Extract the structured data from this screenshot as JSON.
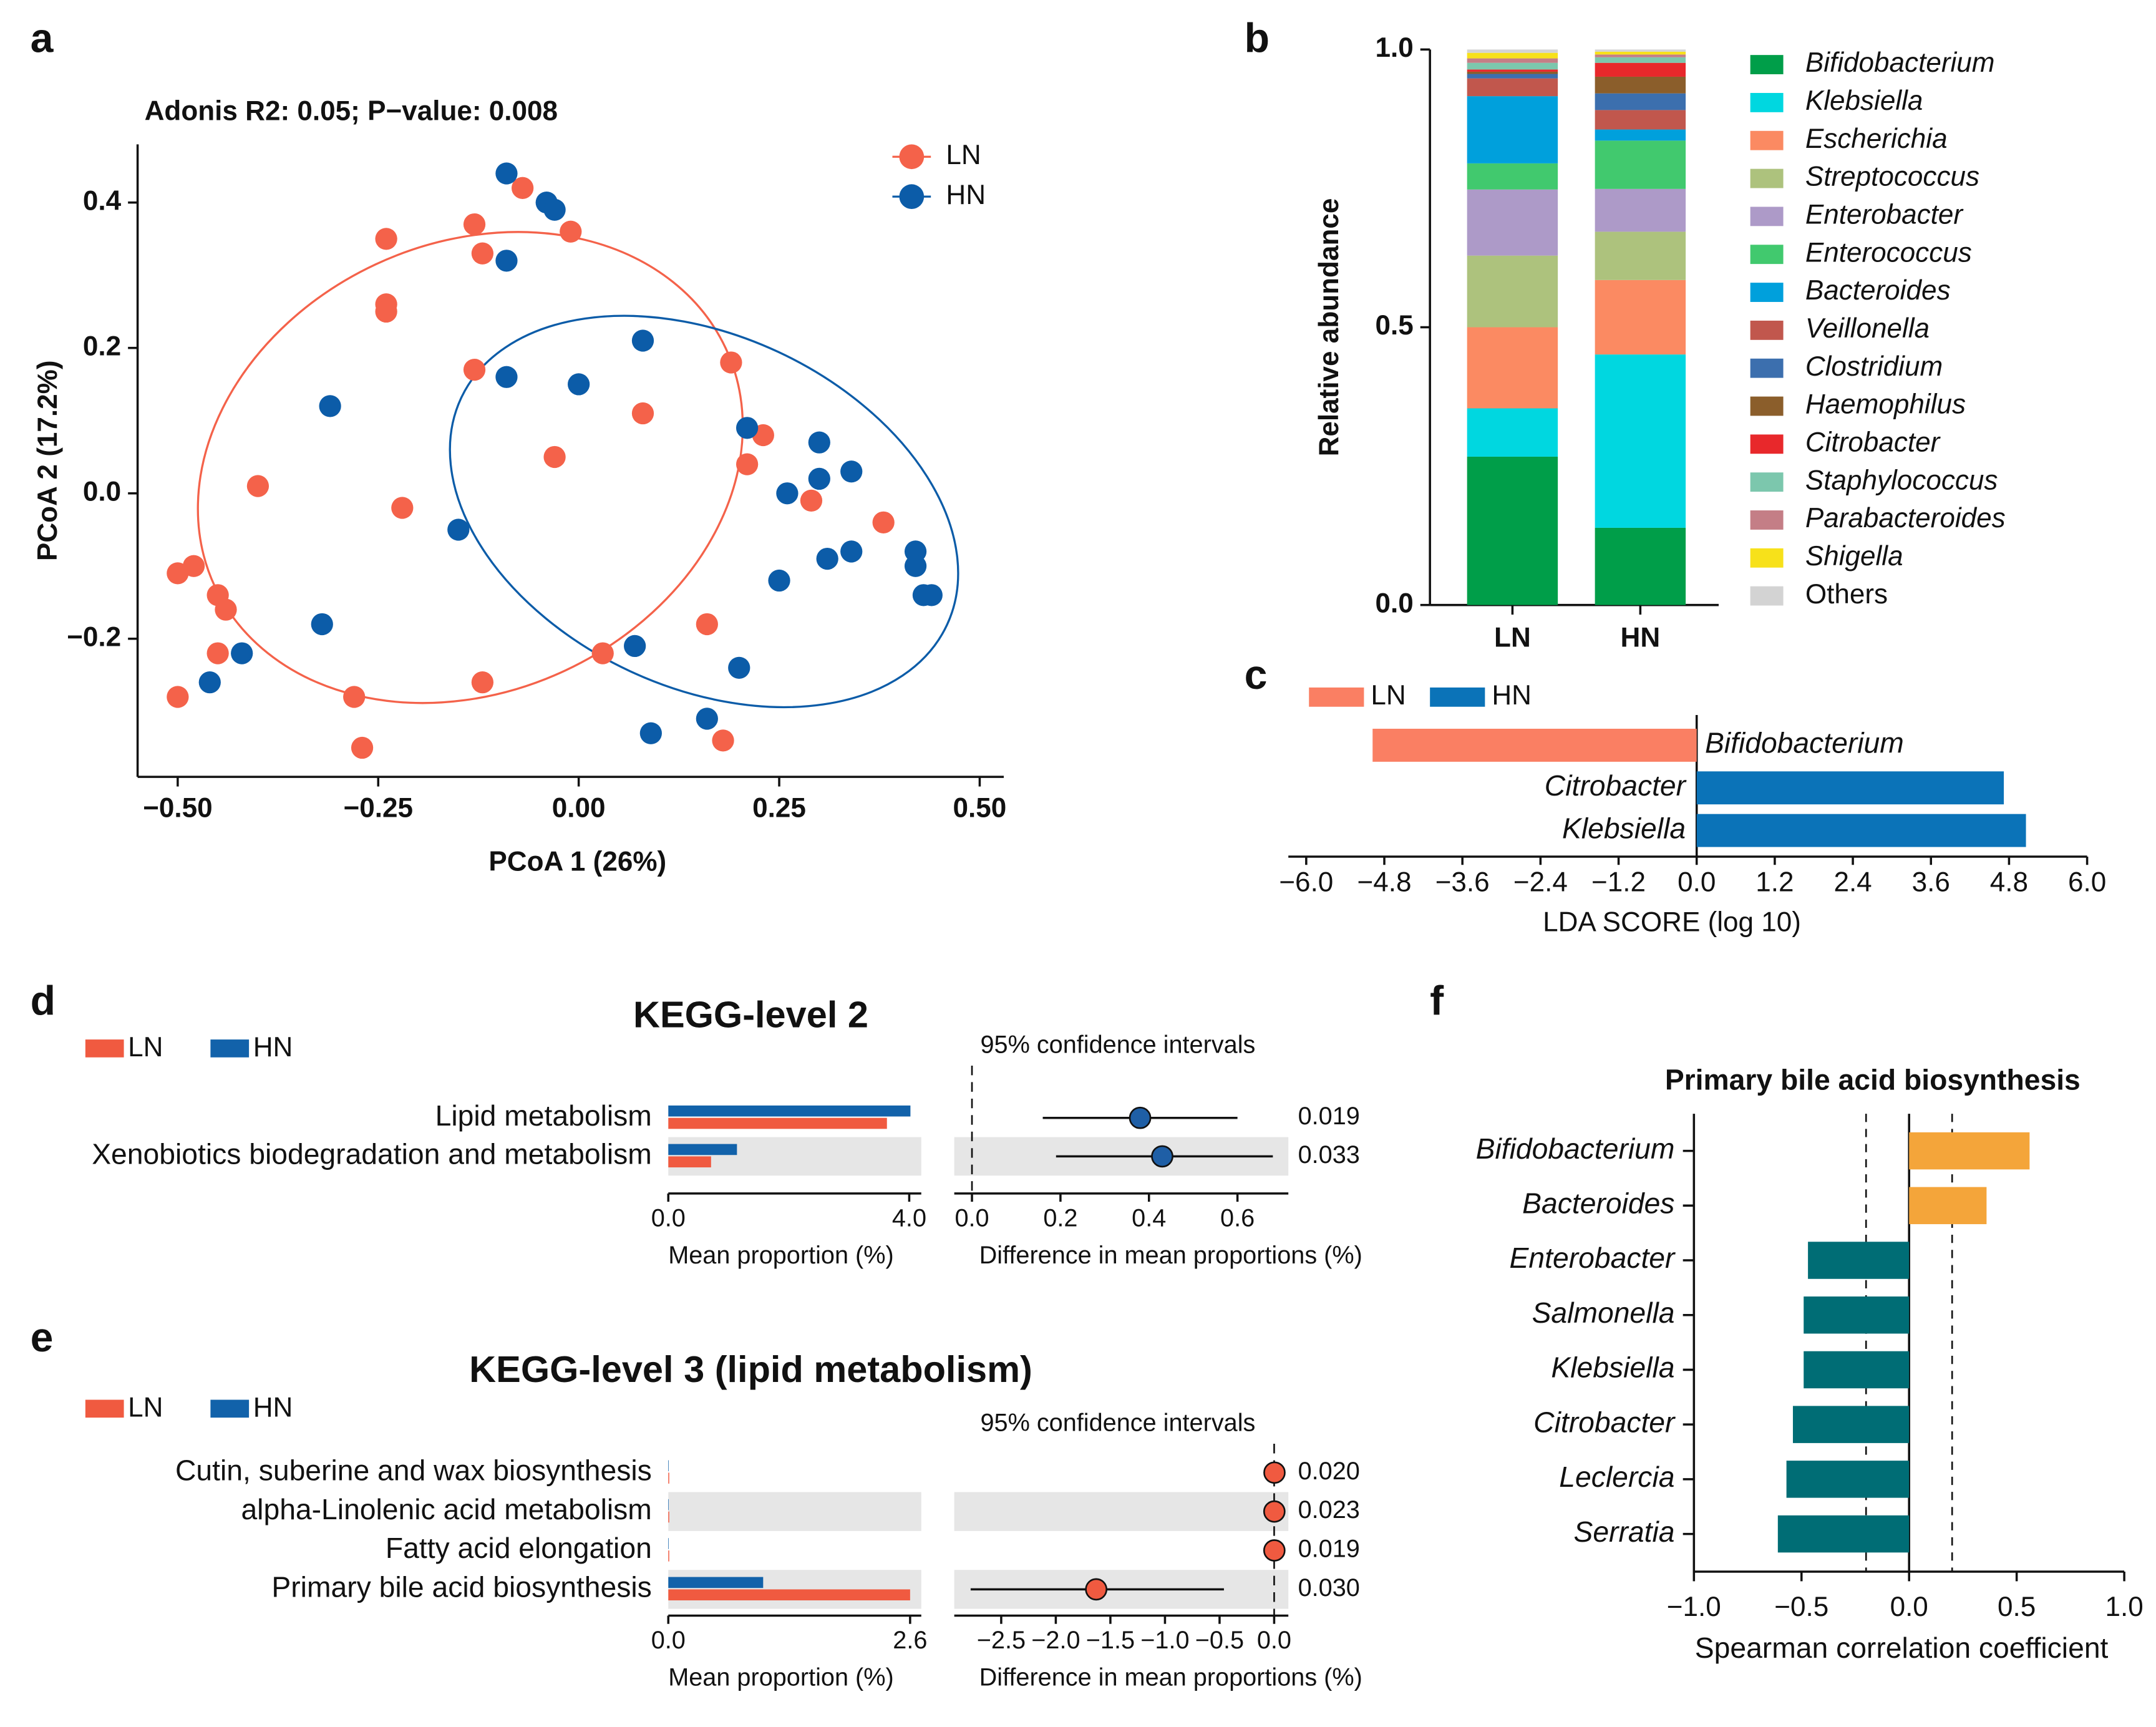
{
  "chart_data": [
    {
      "type": "scatter",
      "panel_label": "a",
      "subtitle": "Adonis R2: 0.05; P−value: 0.008",
      "xlabel": "PCoA 1 (26%)",
      "ylabel": "PCoA 2 (17.2%)",
      "xlim": [
        -0.55,
        0.53
      ],
      "ylim": [
        -0.39,
        0.48
      ],
      "xticks": [
        {
          "value": -0.5,
          "label": "−0.50"
        },
        {
          "value": -0.25,
          "label": "−0.25"
        },
        {
          "value": 0,
          "label": "0.00"
        },
        {
          "value": 0.25,
          "label": "0.25"
        },
        {
          "value": 0.5,
          "label": "0.50"
        }
      ],
      "yticks": [
        {
          "value": -0.2,
          "label": "−0.2"
        },
        {
          "value": 0,
          "label": "0.0"
        },
        0.2,
        0.4
      ],
      "series": [
        {
          "name": "LN",
          "color": "#f4624a",
          "x": [
            -0.07,
            -0.13,
            -0.01,
            -0.24,
            -0.12,
            -0.24,
            -0.24,
            -0.13,
            0.19,
            0.08,
            0.23,
            -0.03,
            0.21,
            -0.4,
            0.29,
            -0.22,
            0.38,
            -0.5,
            -0.48,
            -0.45,
            -0.44,
            -0.45,
            0.03,
            0.16,
            -0.12,
            -0.5,
            -0.28,
            -0.27,
            0.18
          ],
          "y": [
            0.42,
            0.37,
            0.36,
            0.35,
            0.33,
            0.26,
            0.25,
            0.17,
            0.18,
            0.11,
            0.08,
            0.05,
            0.04,
            0.01,
            -0.01,
            -0.02,
            -0.04,
            -0.11,
            -0.1,
            -0.14,
            -0.16,
            -0.22,
            -0.22,
            -0.18,
            -0.26,
            -0.28,
            -0.28,
            -0.35,
            -0.34
          ]
        },
        {
          "name": "HN",
          "color": "#0c5ca8",
          "x": [
            -0.09,
            -0.04,
            -0.03,
            -0.09,
            0.08,
            -0.09,
            0.0,
            -0.31,
            0.21,
            0.3,
            0.34,
            0.26,
            0.3,
            -0.15,
            0.42,
            0.34,
            0.31,
            0.42,
            0.25,
            0.43,
            0.44,
            -0.32,
            0.07,
            -0.42,
            -0.46,
            0.2,
            0.09,
            0.16
          ],
          "y": [
            0.44,
            0.4,
            0.39,
            0.32,
            0.21,
            0.16,
            0.15,
            0.12,
            0.09,
            0.07,
            0.03,
            0.0,
            0.02,
            -0.05,
            -0.08,
            -0.08,
            -0.09,
            -0.1,
            -0.12,
            -0.14,
            -0.14,
            -0.18,
            -0.21,
            -0.22,
            -0.26,
            -0.24,
            -0.33,
            -0.31
          ]
        }
      ]
    },
    {
      "type": "stacked",
      "panel_label": "b",
      "ylabel": "Relative abundance",
      "categories": [
        "LN",
        "HN"
      ],
      "ylim": [
        0,
        1
      ],
      "yticks": [
        {
          "value": 0,
          "label": "0.0"
        },
        0.5,
        {
          "value": 1,
          "label": "1.0"
        }
      ],
      "series": [
        {
          "name": "Bifidobacterium",
          "color": "#009e49",
          "values": [
            0.267,
            0.139
          ]
        },
        {
          "name": "Klebsiella",
          "color": "#00d7e0",
          "values": [
            0.087,
            0.312
          ]
        },
        {
          "name": "Escherichia",
          "color": "#fb8a62",
          "values": [
            0.146,
            0.134
          ]
        },
        {
          "name": "Streptococcus",
          "color": "#adc27d",
          "values": [
            0.129,
            0.087
          ]
        },
        {
          "name": "Enterobacter",
          "color": "#ad9ac8",
          "values": [
            0.119,
            0.077
          ]
        },
        {
          "name": "Enterococcus",
          "color": "#41c96e",
          "values": [
            0.047,
            0.087
          ]
        },
        {
          "name": "Bacteroides",
          "color": "#00a0dc",
          "values": [
            0.121,
            0.02
          ]
        },
        {
          "name": "Veillonella",
          "color": "#c1574d",
          "values": [
            0.032,
            0.035
          ]
        },
        {
          "name": "Clostridium",
          "color": "#3c6fae",
          "values": [
            0.008,
            0.03
          ]
        },
        {
          "name": "Haemophilus",
          "color": "#8b5e2b",
          "values": [
            0.004,
            0.03
          ]
        },
        {
          "name": "Citrobacter",
          "color": "#e8282b",
          "values": [
            0.004,
            0.025
          ]
        },
        {
          "name": "Staphylococcus",
          "color": "#7cc7ad",
          "values": [
            0.012,
            0.01
          ]
        },
        {
          "name": "Parabacteroides",
          "color": "#c47e86",
          "values": [
            0.008,
            0.005
          ]
        },
        {
          "name": "Shigella",
          "color": "#f7e11a",
          "values": [
            0.01,
            0.005
          ]
        },
        {
          "name": "Others",
          "color": "#d3d3d3",
          "values": [
            0.006,
            0.004
          ]
        }
      ]
    },
    {
      "type": "lda",
      "panel_label": "c",
      "xlabel": "LDA SCORE (log 10)",
      "categories": [
        "Bifidobacterium",
        "Citrobacter",
        "Klebsiella"
      ],
      "xlim": [
        -6,
        6
      ],
      "xticks": [
        {
          "value": -6,
          "label": "−6.0"
        },
        {
          "value": -4.8,
          "label": "−4.8"
        },
        {
          "value": -3.6,
          "label": "−3.6"
        },
        {
          "value": -2.4,
          "label": "−2.4"
        },
        {
          "value": -1.2,
          "label": "−1.2"
        },
        {
          "value": 0,
          "label": "0.0"
        },
        1.2,
        2.4,
        3.6,
        4.8,
        {
          "value": 6,
          "label": "6.0"
        }
      ],
      "series": [
        {
          "name": "LN",
          "color": "#fa7f63",
          "values": [
            -4.98,
            null,
            null
          ]
        },
        {
          "name": "HN",
          "color": "#0b73b8",
          "values": [
            null,
            4.72,
            5.06
          ]
        }
      ]
    },
    {
      "type": "ee",
      "panel_label": "d",
      "title": "KEGG-level 2",
      "ci_title": "95% confidence intervals",
      "categories": [
        "Lipid metabolism",
        "Xenobiotics biodegradation and metabolism"
      ],
      "series": [
        {
          "name": "LN",
          "color": "#f05a40",
          "values": [
            3.63,
            0.71
          ]
        },
        {
          "name": "HN",
          "color": "#1262aa",
          "values": [
            4.02,
            1.14
          ]
        }
      ],
      "xlim": [
        0,
        4.2
      ],
      "xticks": [
        {
          "value": 0,
          "label": "0.0"
        },
        {
          "value": 4,
          "label": "4.0"
        }
      ],
      "xlabel": "Mean proportion (%)",
      "difference": {
        "color": "#1f5fa6",
        "values": [
          0.38,
          0.43
        ],
        "ci_low": [
          0.16,
          0.19
        ],
        "ci_high": [
          0.6,
          0.68
        ]
      },
      "diff_xlim": [
        -0.04,
        0.715
      ],
      "diff_xticks": [
        {
          "value": 0,
          "label": "0.0"
        },
        0.2,
        0.4,
        0.6
      ],
      "diff_xlabel": "Difference in mean proportions (%)",
      "p_values": [
        0.019,
        0.033
      ]
    },
    {
      "type": "ee",
      "panel_label": "e",
      "title": "KEGG-level 3 (lipid metabolism)",
      "ci_title": "95% confidence intervals",
      "categories": [
        "Cutin, suberine and wax biosynthesis",
        "alpha-Linolenic acid metabolism",
        "Fatty acid elongation",
        "Primary bile acid biosynthesis"
      ],
      "series": [
        {
          "name": "LN",
          "color": "#f05a40",
          "values": [
            0.01,
            0.01,
            0.01,
            2.6
          ]
        },
        {
          "name": "HN",
          "color": "#1262aa",
          "values": [
            0.005,
            0.005,
            0.005,
            1.02
          ]
        }
      ],
      "xlim": [
        0,
        2.72
      ],
      "xticks": [
        {
          "value": 0,
          "label": "0.0"
        },
        2.6
      ],
      "xlabel": "Mean proportion (%)",
      "difference": {
        "color": "#f05a40",
        "values": [
          0.003,
          0.002,
          0.002,
          -1.63
        ],
        "ci_low": [
          0.001,
          0,
          0,
          -2.78
        ],
        "ci_high": [
          0.005,
          0.004,
          0.004,
          -0.46
        ]
      },
      "diff_xlim": [
        -2.93,
        0.13
      ],
      "diff_xticks": [
        {
          "value": -2.5,
          "label": "−2.5"
        },
        {
          "value": -2,
          "label": "−2.0"
        },
        {
          "value": -1.5,
          "label": "−1.5"
        },
        {
          "value": -1,
          "label": "−1.0"
        },
        {
          "value": -0.5,
          "label": "−0.5"
        },
        {
          "value": 0,
          "label": "0.0"
        }
      ],
      "diff_xlabel": "Difference in mean proportions (%)",
      "p_values": [
        {
          "value": 0.02,
          "label": "0.020"
        },
        0.023,
        0.019,
        {
          "value": 0.03,
          "label": "0.030"
        }
      ]
    },
    {
      "type": "hbar",
      "panel_label": "f",
      "title": "Primary bile acid biosynthesis",
      "xlabel": "Spearman correlation coefficient",
      "categories": [
        "Bifidobacterium",
        "Bacteroides",
        "Enterobacter",
        "Salmonella",
        "Klebsiella",
        "Citrobacter",
        "Leclercia",
        "Serratia"
      ],
      "values": [
        0.56,
        0.36,
        -0.47,
        -0.49,
        -0.49,
        -0.54,
        -0.57,
        -0.61
      ],
      "colors": [
        "#f4a53a",
        "#f4a53a",
        "#006d75",
        "#006d75",
        "#006d75",
        "#006d75",
        "#006d75",
        "#006d75"
      ],
      "reference_lines": [
        -0.2,
        0.2
      ],
      "xlim": [
        -1,
        1
      ],
      "xticks": [
        {
          "value": -1,
          "label": "−1.0"
        },
        {
          "value": -0.5,
          "label": "−0.5"
        },
        {
          "value": 0,
          "label": "0.0"
        },
        0.5,
        {
          "value": 1,
          "label": "1.0"
        }
      ]
    }
  ]
}
